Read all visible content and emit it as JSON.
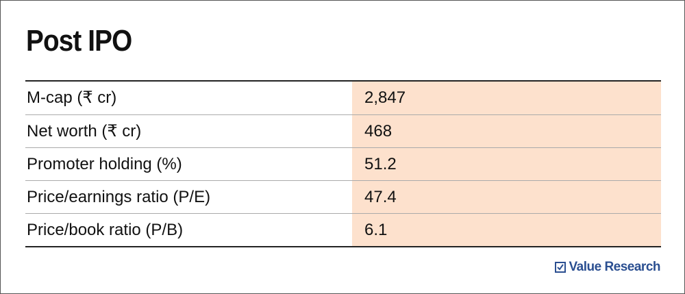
{
  "header": {
    "title": "Post IPO"
  },
  "table": {
    "rows": [
      [
        "M-cap (₹ cr)",
        "2,847"
      ],
      [
        "Net worth (₹ cr)",
        "468"
      ],
      [
        "Promoter holding (%)",
        "51.2"
      ],
      [
        "Price/earnings ratio (P/E)",
        "47.4"
      ],
      [
        "Price/book ratio (P/B)",
        "6.1"
      ]
    ]
  },
  "footer": {
    "brand": "Value Research"
  }
}
